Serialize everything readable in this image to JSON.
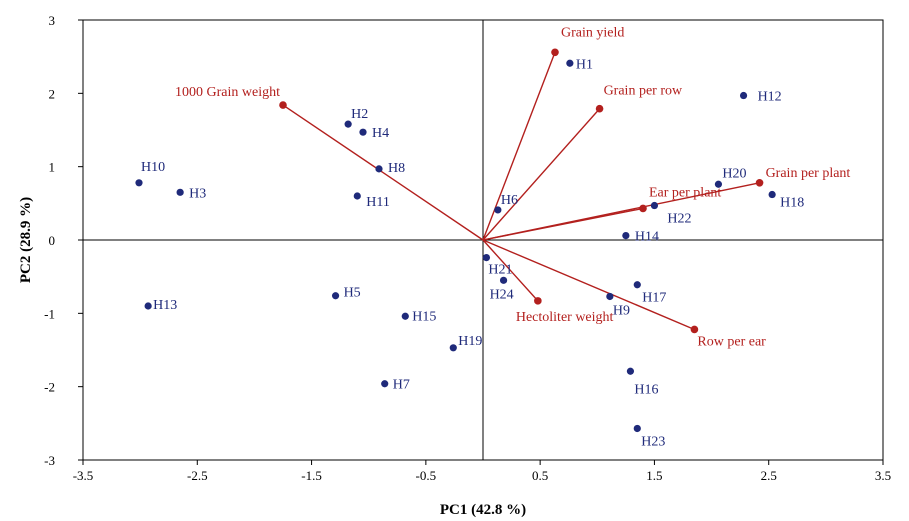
{
  "chart_data": {
    "type": "scatter",
    "subtype": "pca-biplot",
    "title": "",
    "xlabel": "PC1 (42.8 %)",
    "ylabel": "PC2 (28.9 %)",
    "xlim": [
      -3.5,
      3.5
    ],
    "ylim": [
      -3,
      3
    ],
    "xticks": [
      -3.5,
      -2.5,
      -1.5,
      -0.5,
      0.5,
      1.5,
      2.5,
      3.5
    ],
    "yticks": [
      -3,
      -2,
      -1,
      0,
      1,
      2,
      3
    ],
    "xtick_labels": [
      "-3.5",
      "-2.5",
      "-1.5",
      "-0.5",
      "0.5",
      "1.5",
      "2.5",
      "3.5"
    ],
    "ytick_labels": [
      "-3",
      "-2",
      "-1",
      "0",
      "1",
      "2",
      "3"
    ],
    "grid": false,
    "legend": "none",
    "colors": {
      "observations": "#1f2a7a",
      "variables": "#b3201e",
      "axes": "#000000"
    },
    "observations": [
      {
        "label": "H1",
        "x": 0.76,
        "y": 2.41
      },
      {
        "label": "H2",
        "x": -1.18,
        "y": 1.58
      },
      {
        "label": "H3",
        "x": -2.65,
        "y": 0.65
      },
      {
        "label": "H4",
        "x": -1.05,
        "y": 1.47
      },
      {
        "label": "H5",
        "x": -1.29,
        "y": -0.76
      },
      {
        "label": "H6",
        "x": 0.13,
        "y": 0.41
      },
      {
        "label": "H7",
        "x": -0.86,
        "y": -1.96
      },
      {
        "label": "H8",
        "x": -0.91,
        "y": 0.97
      },
      {
        "label": "H9",
        "x": 1.11,
        "y": -0.77
      },
      {
        "label": "H10",
        "x": -3.01,
        "y": 0.78
      },
      {
        "label": "H11",
        "x": -1.1,
        "y": 0.6
      },
      {
        "label": "H12",
        "x": 2.28,
        "y": 1.97
      },
      {
        "label": "H13",
        "x": -2.93,
        "y": -0.9
      },
      {
        "label": "H14",
        "x": 1.25,
        "y": 0.06
      },
      {
        "label": "H15",
        "x": -0.68,
        "y": -1.04
      },
      {
        "label": "H16",
        "x": 1.29,
        "y": -1.79
      },
      {
        "label": "H17",
        "x": 1.35,
        "y": -0.61
      },
      {
        "label": "H18",
        "x": 2.53,
        "y": 0.62
      },
      {
        "label": "H19",
        "x": -0.26,
        "y": -1.47
      },
      {
        "label": "H20",
        "x": 2.06,
        "y": 0.76
      },
      {
        "label": "H21",
        "x": 0.03,
        "y": -0.24
      },
      {
        "label": "H22",
        "x": 1.5,
        "y": 0.47
      },
      {
        "label": "H23",
        "x": 1.35,
        "y": -2.57
      },
      {
        "label": "H24",
        "x": 0.18,
        "y": -0.55
      }
    ],
    "variables": [
      {
        "label": "Grain yield",
        "x": 0.63,
        "y": 2.56
      },
      {
        "label": "Grain per row",
        "x": 1.02,
        "y": 1.79
      },
      {
        "label": "1000 Grain weight",
        "x": -1.75,
        "y": 1.84
      },
      {
        "label": "Grain per plant",
        "x": 2.42,
        "y": 0.78
      },
      {
        "label": "Ear per plant",
        "x": 1.4,
        "y": 0.43
      },
      {
        "label": "Hectoliter weight",
        "x": 0.48,
        "y": -0.83
      },
      {
        "label": "Row per ear",
        "x": 1.85,
        "y": -1.22
      }
    ]
  }
}
